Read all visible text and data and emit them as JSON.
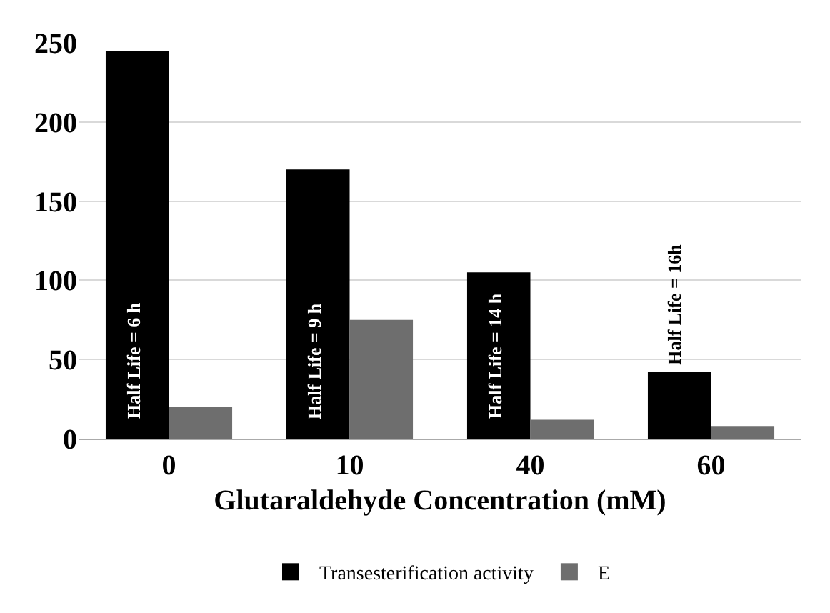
{
  "chart_data": {
    "type": "bar",
    "xlabel": "Glutaraldehyde Concentration (mM)",
    "categories": [
      "0",
      "10",
      "40",
      "60"
    ],
    "series": [
      {
        "name": "Transesterification activity",
        "color": "#000000",
        "values": [
          245,
          170,
          105,
          42
        ]
      },
      {
        "name": "E",
        "color": "#6e6e6e",
        "values": [
          20,
          75,
          12,
          8
        ]
      }
    ],
    "ylim": [
      0,
      250
    ],
    "yticks": [
      0,
      50,
      100,
      150,
      200,
      250
    ],
    "grid": "y",
    "legend": "bottom",
    "annotations": [
      "Half Life = 6 h",
      "Half Life = 9 h",
      "Half Life = 14 h",
      "Half Life = 16h"
    ]
  }
}
